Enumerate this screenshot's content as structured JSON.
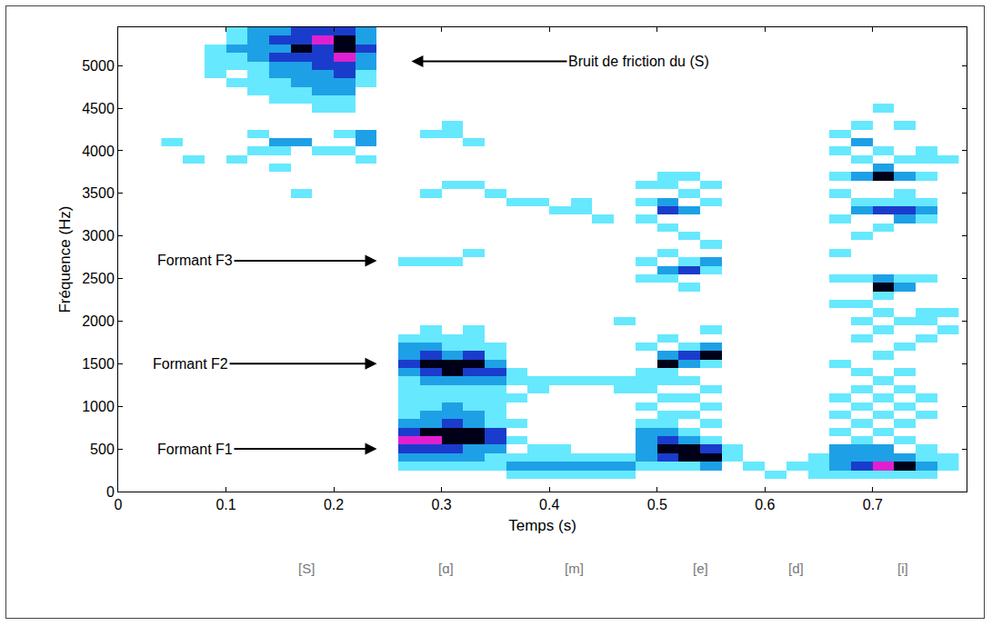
{
  "chart_data": {
    "type": "heatmap",
    "xlabel": "Temps (s)",
    "ylabel": "Fréquence (Hz)",
    "xlim": [
      0,
      0.787
    ],
    "xticks": [
      0,
      0.1,
      0.2,
      0.3,
      0.4,
      0.5,
      0.6,
      0.7
    ],
    "ylim": [
      0,
      5450
    ],
    "yticks": [
      0,
      500,
      1000,
      1500,
      2000,
      2500,
      3000,
      3500,
      4000,
      4500,
      5000
    ],
    "grid": false,
    "zlim": [
      1,
      5
    ],
    "columns": [
      {
        "t": 0.05,
        "f": [
          4100
        ],
        "level": [
          1
        ]
      },
      {
        "t": 0.07,
        "f": [
          3900
        ],
        "level": [
          1
        ]
      },
      {
        "t": 0.09,
        "f": [
          5200,
          5100,
          5000,
          4900
        ],
        "level": [
          1,
          1,
          1,
          1
        ]
      },
      {
        "t": 0.11,
        "f": [
          5400,
          5300,
          5200,
          5100,
          5000,
          4800,
          3900
        ],
        "level": [
          1,
          1,
          2,
          1,
          1,
          1,
          1
        ]
      },
      {
        "t": 0.13,
        "f": [
          5400,
          5300,
          5200,
          5100,
          5000,
          4900,
          4800,
          4700,
          4200,
          4000
        ],
        "level": [
          2,
          2,
          2,
          2,
          1,
          1,
          1,
          1,
          1,
          1
        ]
      },
      {
        "t": 0.15,
        "f": [
          5400,
          5300,
          5200,
          5100,
          5000,
          4900,
          4800,
          4700,
          4600,
          4100,
          4000,
          3800
        ],
        "level": [
          2,
          3,
          2,
          3,
          2,
          2,
          1,
          1,
          1,
          2,
          1,
          1
        ]
      },
      {
        "t": 0.17,
        "f": [
          5400,
          5300,
          5200,
          5100,
          5000,
          4900,
          4800,
          4700,
          4600,
          4100,
          3500
        ],
        "level": [
          3,
          3,
          4,
          3,
          2,
          2,
          2,
          1,
          1,
          2,
          1
        ]
      },
      {
        "t": 0.19,
        "f": [
          5400,
          5300,
          5200,
          5100,
          5000,
          4900,
          4800,
          4700,
          4600,
          4500,
          4000
        ],
        "level": [
          3,
          5,
          3,
          3,
          3,
          2,
          2,
          2,
          1,
          1,
          1
        ]
      },
      {
        "t": 0.21,
        "f": [
          5400,
          5300,
          5200,
          5100,
          5000,
          4900,
          4800,
          4700,
          4600,
          4500,
          4200,
          4000
        ],
        "level": [
          3,
          4,
          4,
          5,
          3,
          3,
          2,
          2,
          1,
          1,
          1,
          1
        ]
      },
      {
        "t": 0.23,
        "f": [
          5400,
          5300,
          5200,
          5100,
          5000,
          4900,
          4800,
          4200,
          4100,
          3900
        ],
        "level": [
          2,
          2,
          3,
          2,
          2,
          1,
          1,
          2,
          2,
          1
        ]
      },
      {
        "t": 0.27,
        "f": [
          2700,
          1800,
          1700,
          1600,
          1500,
          1400,
          1300,
          1200,
          1100,
          1000,
          900,
          800,
          700,
          600,
          500,
          400,
          300
        ],
        "level": [
          1,
          1,
          2,
          2,
          3,
          2,
          1,
          1,
          1,
          1,
          1,
          2,
          3,
          5,
          3,
          2,
          1
        ]
      },
      {
        "t": 0.29,
        "f": [
          4200,
          3500,
          2700,
          1900,
          1800,
          1700,
          1600,
          1500,
          1400,
          1300,
          1200,
          1100,
          1000,
          900,
          800,
          700,
          600,
          500,
          400,
          300
        ],
        "level": [
          1,
          1,
          1,
          1,
          1,
          2,
          3,
          4,
          3,
          2,
          1,
          1,
          1,
          2,
          2,
          4,
          5,
          3,
          2,
          1
        ]
      },
      {
        "t": 0.31,
        "f": [
          4300,
          4200,
          3600,
          2700,
          1800,
          1700,
          1600,
          1500,
          1400,
          1300,
          1200,
          1100,
          1000,
          900,
          800,
          700,
          600,
          500,
          400,
          300
        ],
        "level": [
          1,
          1,
          1,
          1,
          1,
          1,
          2,
          4,
          4,
          2,
          1,
          1,
          2,
          2,
          3,
          4,
          4,
          3,
          2,
          1
        ]
      },
      {
        "t": 0.33,
        "f": [
          4100,
          3600,
          2800,
          1900,
          1800,
          1700,
          1600,
          1500,
          1400,
          1300,
          1200,
          1100,
          1000,
          900,
          800,
          700,
          600,
          500,
          400,
          300
        ],
        "level": [
          1,
          1,
          1,
          1,
          1,
          1,
          3,
          4,
          3,
          2,
          1,
          1,
          1,
          2,
          2,
          4,
          4,
          2,
          2,
          1
        ]
      },
      {
        "t": 0.35,
        "f": [
          3500,
          1700,
          1600,
          1500,
          1400,
          1300,
          1200,
          1100,
          1000,
          900,
          800,
          700,
          600,
          500,
          400,
          300
        ],
        "level": [
          1,
          1,
          1,
          2,
          3,
          2,
          1,
          1,
          1,
          1,
          1,
          3,
          3,
          2,
          1,
          1
        ]
      },
      {
        "t": 0.37,
        "f": [
          3400,
          1400,
          1300,
          1100,
          800,
          600,
          400,
          300,
          200
        ],
        "level": [
          1,
          1,
          1,
          1,
          1,
          1,
          1,
          2,
          1
        ]
      },
      {
        "t": 0.39,
        "f": [
          3400,
          1300,
          1200,
          500,
          400,
          300,
          200
        ],
        "level": [
          1,
          1,
          1,
          1,
          1,
          2,
          1
        ]
      },
      {
        "t": 0.41,
        "f": [
          3300,
          1300,
          500,
          400,
          300,
          200
        ],
        "level": [
          1,
          1,
          1,
          1,
          2,
          1
        ]
      },
      {
        "t": 0.43,
        "f": [
          3400,
          3300,
          1300,
          400,
          300,
          200
        ],
        "level": [
          1,
          1,
          1,
          1,
          2,
          1
        ]
      },
      {
        "t": 0.45,
        "f": [
          3200,
          1300,
          400,
          300,
          200
        ],
        "level": [
          1,
          1,
          1,
          2,
          1
        ]
      },
      {
        "t": 0.47,
        "f": [
          2000,
          1300,
          1200,
          400,
          300,
          200
        ],
        "level": [
          1,
          1,
          1,
          1,
          2,
          1
        ]
      },
      {
        "t": 0.49,
        "f": [
          3600,
          3400,
          3200,
          2700,
          2500,
          1700,
          1400,
          1300,
          1200,
          1000,
          800,
          700,
          600,
          500,
          400,
          300
        ],
        "level": [
          1,
          1,
          1,
          1,
          1,
          1,
          1,
          1,
          1,
          1,
          1,
          2,
          2,
          2,
          2,
          1
        ]
      },
      {
        "t": 0.51,
        "f": [
          3700,
          3600,
          3400,
          3300,
          3100,
          2800,
          2600,
          2500,
          1800,
          1600,
          1500,
          1400,
          1300,
          1100,
          900,
          800,
          700,
          600,
          500,
          400,
          300
        ],
        "level": [
          1,
          1,
          2,
          3,
          1,
          1,
          2,
          1,
          1,
          2,
          4,
          1,
          1,
          1,
          1,
          1,
          2,
          3,
          4,
          3,
          1
        ]
      },
      {
        "t": 0.53,
        "f": [
          3700,
          3500,
          3300,
          3000,
          2700,
          2600,
          2400,
          1700,
          1600,
          1500,
          1300,
          1100,
          900,
          700,
          600,
          500,
          400,
          300
        ],
        "level": [
          1,
          1,
          2,
          1,
          1,
          3,
          1,
          1,
          3,
          2,
          1,
          1,
          1,
          1,
          2,
          4,
          4,
          1
        ]
      },
      {
        "t": 0.55,
        "f": [
          3600,
          3400,
          2900,
          2700,
          2600,
          1900,
          1700,
          1600,
          1500,
          1200,
          1000,
          800,
          600,
          500,
          400,
          300
        ],
        "level": [
          1,
          1,
          1,
          2,
          1,
          1,
          2,
          4,
          1,
          1,
          1,
          1,
          1,
          3,
          4,
          2
        ]
      },
      {
        "t": 0.57,
        "f": [
          500,
          400
        ],
        "level": [
          1,
          1
        ]
      },
      {
        "t": 0.59,
        "f": [
          300
        ],
        "level": [
          1
        ]
      },
      {
        "t": 0.61,
        "f": [
          200
        ],
        "level": [
          1
        ]
      },
      {
        "t": 0.63,
        "f": [
          300
        ],
        "level": [
          1
        ]
      },
      {
        "t": 0.65,
        "f": [
          400,
          300,
          200
        ],
        "level": [
          1,
          1,
          1
        ]
      },
      {
        "t": 0.67,
        "f": [
          4200,
          4000,
          3700,
          3500,
          3200,
          2800,
          2500,
          2200,
          1500,
          1100,
          900,
          700,
          500,
          400,
          300,
          200
        ],
        "level": [
          1,
          1,
          1,
          1,
          1,
          1,
          1,
          1,
          1,
          1,
          1,
          1,
          2,
          2,
          2,
          1
        ]
      },
      {
        "t": 0.69,
        "f": [
          4300,
          4100,
          3900,
          3700,
          3400,
          3300,
          3000,
          2500,
          2200,
          2000,
          1800,
          1400,
          1200,
          1000,
          800,
          600,
          500,
          400,
          300,
          200
        ],
        "level": [
          1,
          2,
          1,
          2,
          1,
          2,
          1,
          1,
          1,
          1,
          1,
          1,
          1,
          1,
          1,
          1,
          2,
          2,
          3,
          1
        ]
      },
      {
        "t": 0.71,
        "f": [
          4500,
          4000,
          3800,
          3700,
          3400,
          3300,
          3100,
          2500,
          2400,
          2300,
          2100,
          1900,
          1600,
          1300,
          1100,
          900,
          700,
          500,
          400,
          300,
          200
        ],
        "level": [
          1,
          1,
          2,
          4,
          1,
          3,
          1,
          2,
          4,
          1,
          1,
          1,
          1,
          1,
          1,
          1,
          1,
          2,
          2,
          5,
          1
        ]
      },
      {
        "t": 0.73,
        "f": [
          4300,
          3900,
          3700,
          3500,
          3400,
          3300,
          3200,
          2500,
          2400,
          2000,
          1700,
          1400,
          1200,
          1000,
          800,
          600,
          400,
          300,
          200
        ],
        "level": [
          1,
          1,
          2,
          1,
          1,
          3,
          2,
          1,
          2,
          1,
          1,
          1,
          1,
          1,
          1,
          1,
          2,
          4,
          1
        ]
      },
      {
        "t": 0.75,
        "f": [
          4000,
          3900,
          3700,
          3400,
          3300,
          3200,
          2500,
          2100,
          2000,
          1800,
          1100,
          900,
          500,
          400,
          300,
          200
        ],
        "level": [
          1,
          1,
          1,
          1,
          2,
          1,
          1,
          1,
          1,
          1,
          1,
          1,
          1,
          1,
          2,
          1
        ]
      },
      {
        "t": 0.77,
        "f": [
          3900,
          2100,
          1900,
          400,
          300
        ],
        "level": [
          1,
          1,
          1,
          1,
          1
        ]
      }
    ],
    "annotations": [
      {
        "text": "Bruit de friction du (S)",
        "x": 0.272,
        "y": 5050
      },
      {
        "text": "Formant F3",
        "x": 0.24,
        "y": 2710
      },
      {
        "text": "Formant F2",
        "x": 0.24,
        "y": 1500
      },
      {
        "text": "Formant F1",
        "x": 0.24,
        "y": 500
      }
    ],
    "segments": [
      {
        "label": "[S]",
        "t": 0.175
      },
      {
        "label": "[ɑ]",
        "t": 0.304
      },
      {
        "label": "[m]",
        "t": 0.423
      },
      {
        "label": "[e]",
        "t": 0.54
      },
      {
        "label": "[d]",
        "t": 0.629
      },
      {
        "label": "[i]",
        "t": 0.728
      }
    ]
  }
}
